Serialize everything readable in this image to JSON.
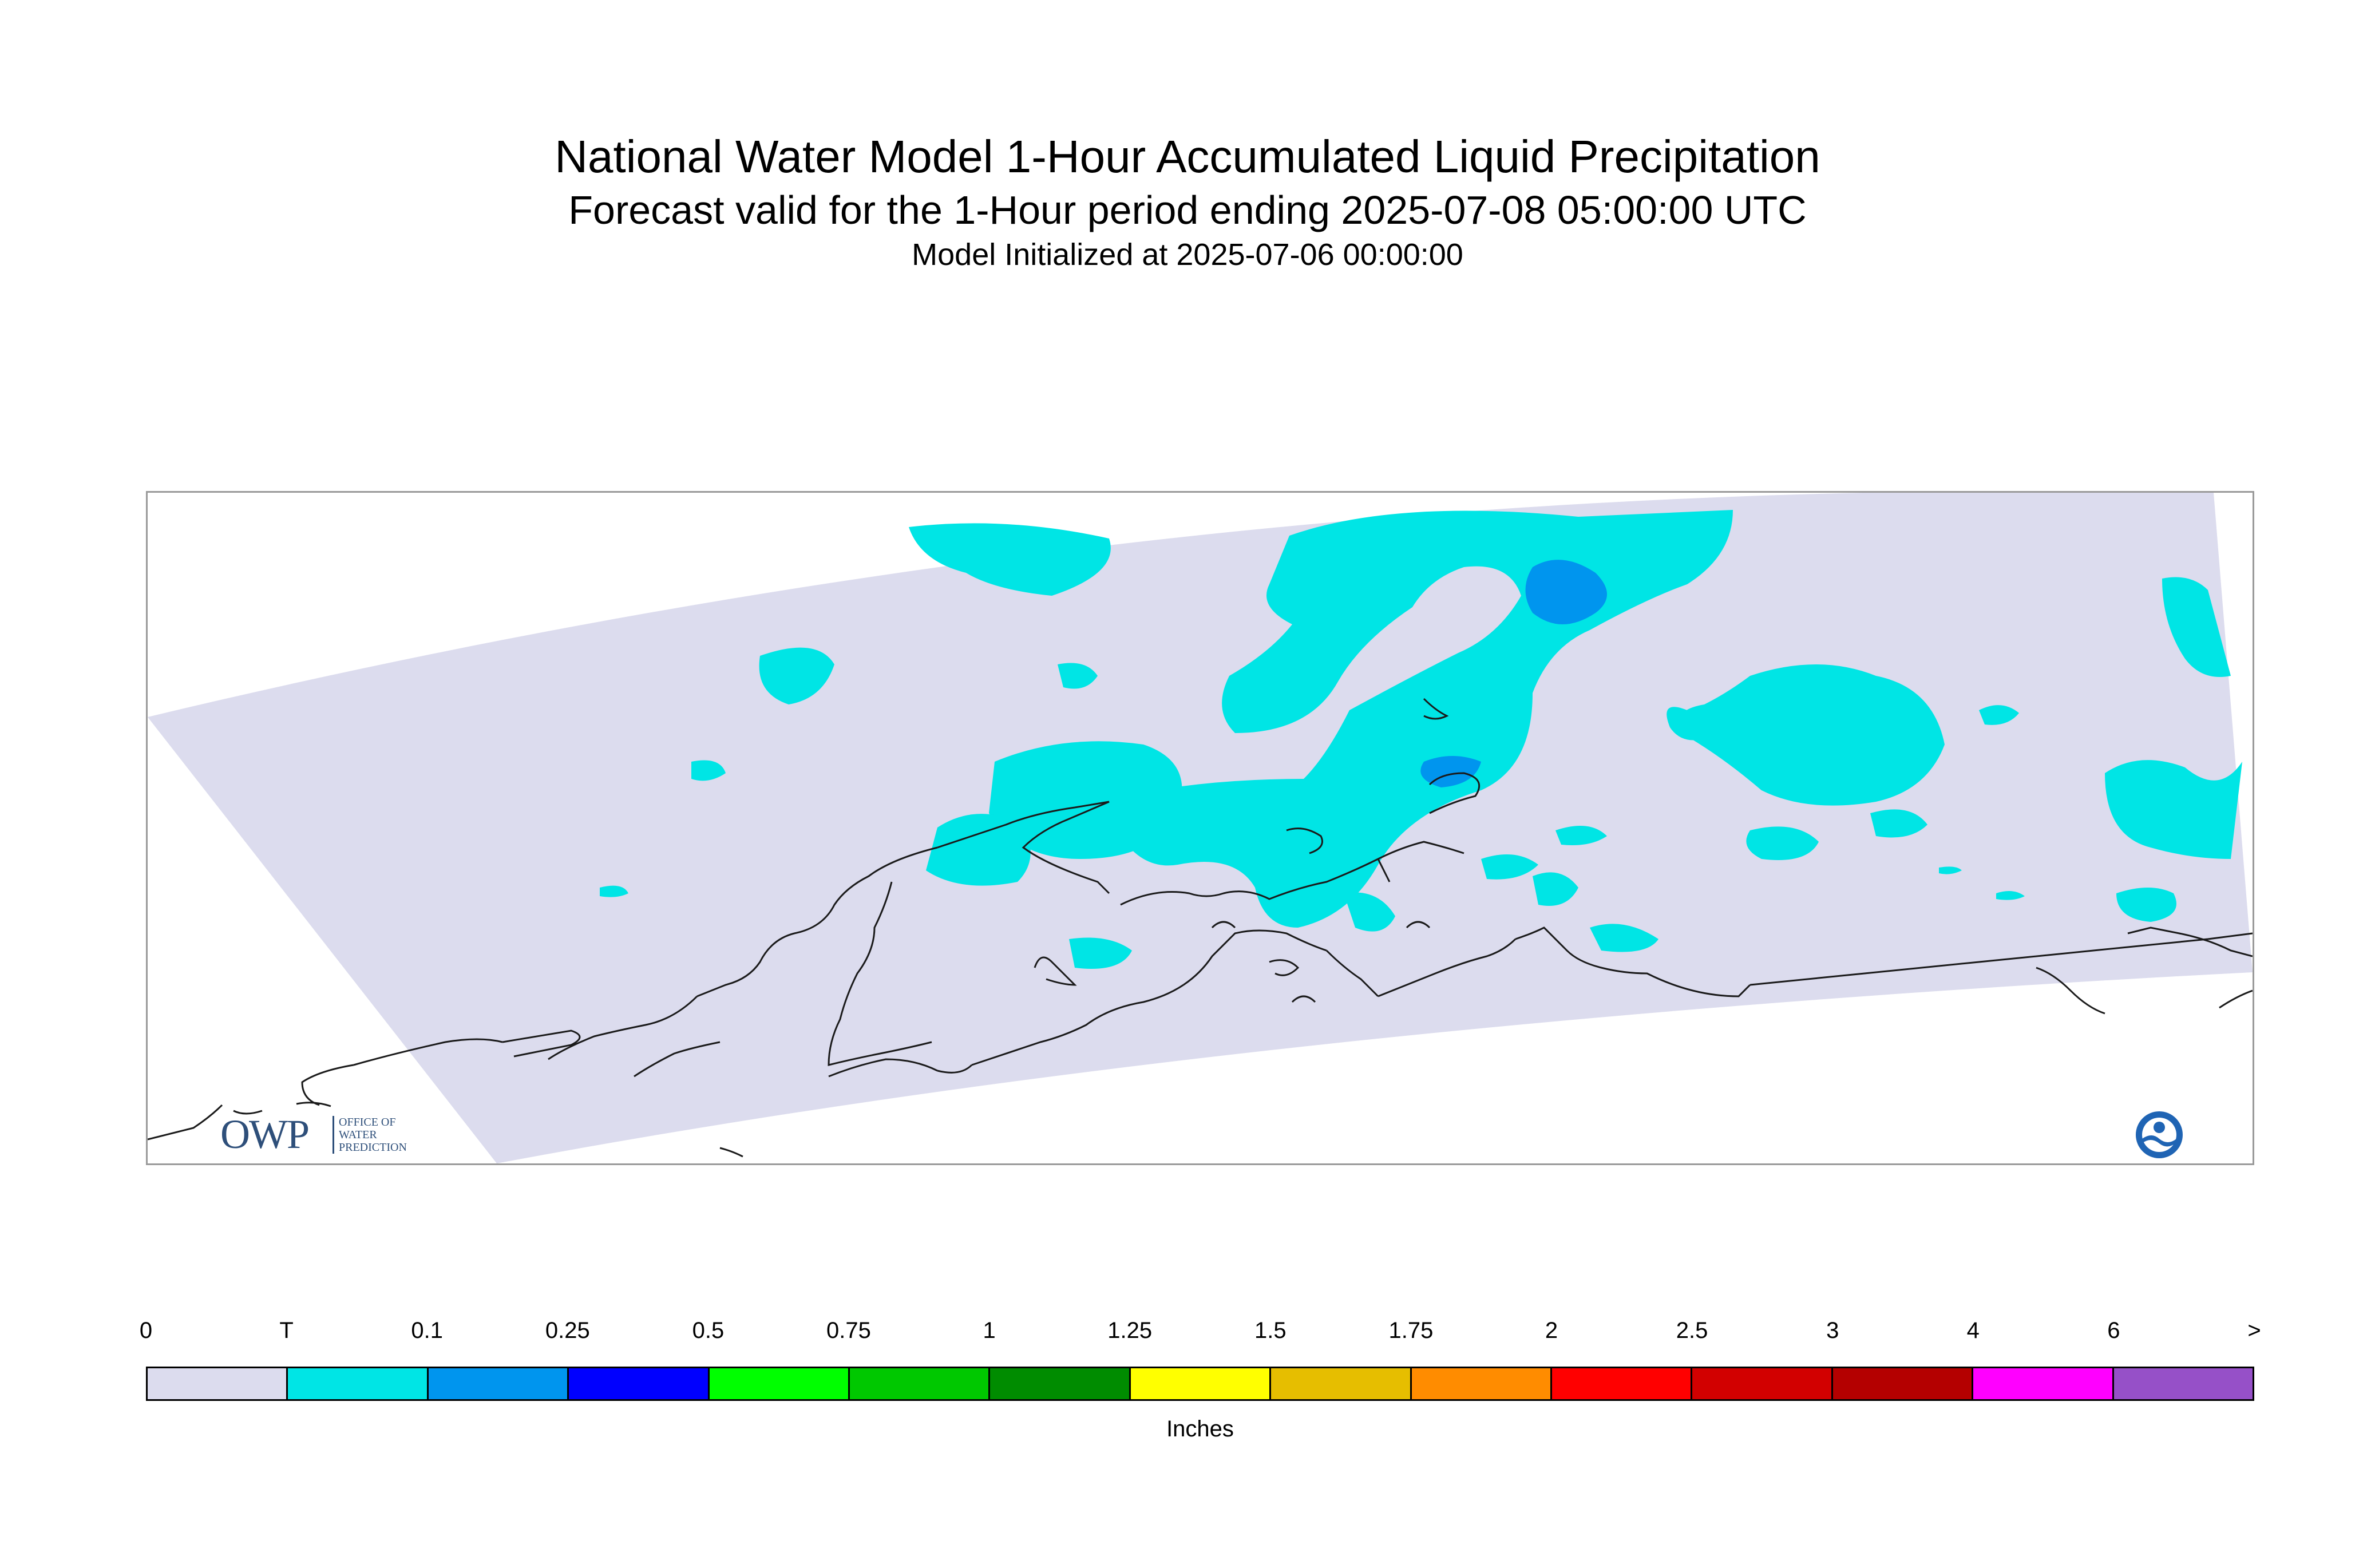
{
  "header": {
    "title": "National Water Model 1-Hour Accumulated Liquid Precipitation",
    "subtitle": "Forecast valid for the 1-Hour period ending 2025-07-08 05:00:00 UTC",
    "init": "Model Initialized at 2025-07-06 00:00:00"
  },
  "map": {
    "domain_color": "#dcdcee",
    "coastline_color": "#1a1a1a",
    "precip_colors": {
      "trace": "#00e5e5",
      "light": "#0095ee"
    }
  },
  "logos": {
    "owp_mark": "OWP",
    "owp_text": "OFFICE OF WATER PREDICTION",
    "noaa_icon": "noaa-logo-icon"
  },
  "legend": {
    "tick_labels": [
      "0",
      "T",
      "0.1",
      "0.25",
      "0.5",
      "0.75",
      "1",
      "1.25",
      "1.5",
      "1.75",
      "2",
      "2.5",
      "3",
      "4",
      "6",
      ">"
    ],
    "colors": [
      "#dcdcee",
      "#00e5e5",
      "#0095ee",
      "#0000ff",
      "#00ff00",
      "#00c800",
      "#008c00",
      "#ffff00",
      "#e6be00",
      "#ff8c00",
      "#ff0000",
      "#d20000",
      "#b40000",
      "#ff00ff",
      "#9650c8"
    ],
    "unit": "Inches"
  }
}
